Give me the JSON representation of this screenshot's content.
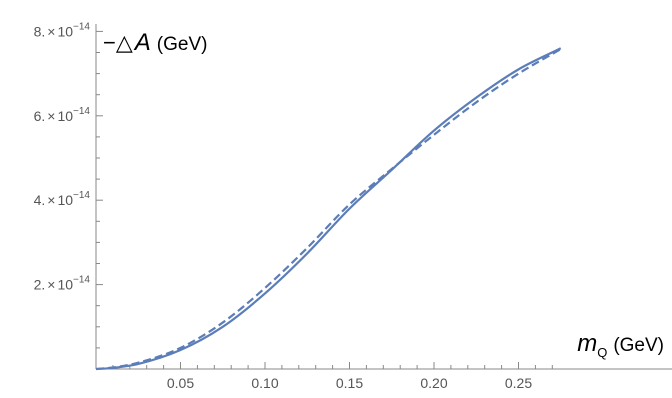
{
  "chart_data": {
    "type": "line",
    "xlabel": {
      "symbol": "m",
      "subscript": "Q",
      "unit": "(GeV)"
    },
    "ylabel": {
      "prefix": "−△",
      "symbol": "A",
      "unit": "(GeV)"
    },
    "xlim": [
      0,
      0.275
    ],
    "ylim": [
      0,
      8e-14
    ],
    "x_ticks": [
      {
        "value": 0.05,
        "label": "0.05"
      },
      {
        "value": 0.1,
        "label": "0.10"
      },
      {
        "value": 0.15,
        "label": "0.15"
      },
      {
        "value": 0.2,
        "label": "0.20"
      },
      {
        "value": 0.25,
        "label": "0.25"
      }
    ],
    "y_ticks": [
      {
        "value": 2e-14,
        "mantissa": "2.",
        "times": "×",
        "base": "10",
        "exponent": "−14"
      },
      {
        "value": 4e-14,
        "mantissa": "4.",
        "times": "×",
        "base": "10",
        "exponent": "−14"
      },
      {
        "value": 6e-14,
        "mantissa": "6.",
        "times": "×",
        "base": "10",
        "exponent": "−14"
      },
      {
        "value": 8e-14,
        "mantissa": "8.",
        "times": "×",
        "base": "10",
        "exponent": "−14"
      }
    ],
    "grid": false,
    "series": [
      {
        "style": "solid",
        "color": "#5b7db8",
        "x": [
          0,
          0.01,
          0.025,
          0.05,
          0.075,
          0.1,
          0.125,
          0.15,
          0.175,
          0.2,
          0.225,
          0.25,
          0.275
        ],
        "y": [
          0,
          2.5e-16,
          1.2e-15,
          4.5e-15,
          1e-14,
          1.79e-14,
          2.74e-14,
          3.8e-14,
          4.72e-14,
          5.65e-14,
          6.43e-14,
          7.1e-14,
          7.6e-14
        ]
      },
      {
        "style": "dashed",
        "color": "#5b7db8",
        "x": [
          0,
          0.01,
          0.025,
          0.05,
          0.075,
          0.1,
          0.125,
          0.15,
          0.175,
          0.2,
          0.225,
          0.25,
          0.275
        ],
        "y": [
          0,
          3.5e-16,
          1.5e-15,
          5e-15,
          1.1e-14,
          1.92e-14,
          2.87e-14,
          3.9e-14,
          4.74e-14,
          5.55e-14,
          6.32e-14,
          7e-14,
          7.58e-14
        ]
      }
    ]
  }
}
